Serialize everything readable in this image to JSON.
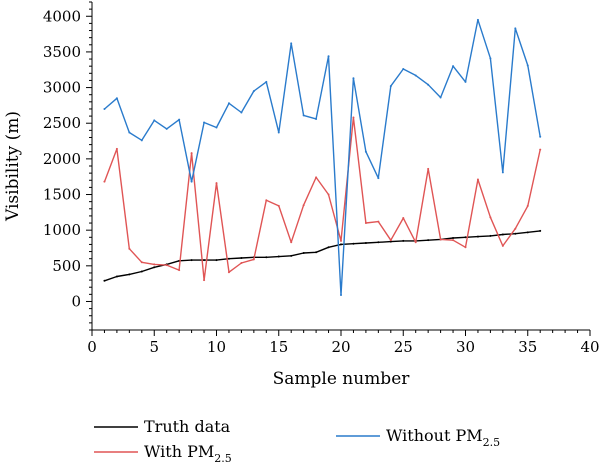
{
  "chart_data": {
    "type": "line",
    "xlabel": "Sample number",
    "ylabel": "Visibility (m)",
    "xlim": [
      0,
      40
    ],
    "ylim": [
      -400,
      4200
    ],
    "xticks": [
      0,
      5,
      10,
      15,
      20,
      25,
      30,
      35,
      40
    ],
    "yticks": [
      0,
      500,
      1000,
      1500,
      2000,
      2500,
      3000,
      3500,
      4000
    ],
    "grid": false,
    "legend_position": "bottom",
    "series": [
      {
        "name": "Truth data",
        "legend_main": "Truth data",
        "legend_sub": "",
        "color": "#000000",
        "x": [
          1,
          2,
          3,
          4,
          5,
          6,
          7,
          8,
          9,
          10,
          11,
          12,
          13,
          14,
          15,
          16,
          17,
          18,
          19,
          20,
          21,
          22,
          23,
          24,
          25,
          26,
          27,
          28,
          29,
          30,
          31,
          32,
          33,
          34,
          35,
          36
        ],
        "y": [
          290,
          350,
          380,
          420,
          480,
          520,
          570,
          580,
          580,
          580,
          600,
          610,
          620,
          620,
          630,
          640,
          680,
          690,
          760,
          800,
          810,
          820,
          830,
          840,
          850,
          850,
          860,
          870,
          890,
          900,
          910,
          920,
          940,
          950,
          970,
          990
        ]
      },
      {
        "name": "With PM2.5",
        "legend_main": "With PM",
        "legend_sub": "2.5",
        "color": "#e05555",
        "x": [
          1,
          2,
          3,
          4,
          5,
          6,
          7,
          8,
          9,
          10,
          11,
          12,
          13,
          14,
          15,
          16,
          17,
          18,
          19,
          20,
          21,
          22,
          23,
          24,
          25,
          26,
          27,
          28,
          29,
          30,
          31,
          32,
          33,
          34,
          35,
          36
        ],
        "y": [
          1680,
          2140,
          740,
          550,
          520,
          510,
          440,
          2080,
          300,
          1660,
          410,
          540,
          590,
          1420,
          1340,
          830,
          1350,
          1740,
          1500,
          850,
          2580,
          1100,
          1120,
          860,
          1170,
          830,
          1860,
          870,
          860,
          760,
          1710,
          1180,
          780,
          1020,
          1340,
          2130
        ]
      },
      {
        "name": "Without PM2.5",
        "legend_main": "Without PM",
        "legend_sub": "2.5",
        "color": "#2a7bcc",
        "x": [
          1,
          2,
          3,
          4,
          5,
          6,
          7,
          8,
          9,
          10,
          11,
          12,
          13,
          14,
          15,
          16,
          17,
          18,
          19,
          20,
          21,
          22,
          23,
          24,
          25,
          26,
          27,
          28,
          29,
          30,
          31,
          32,
          33,
          34,
          35,
          36
        ],
        "y": [
          2700,
          2850,
          2370,
          2260,
          2540,
          2420,
          2550,
          1680,
          2510,
          2440,
          2780,
          2650,
          2950,
          3080,
          2370,
          3620,
          2610,
          2560,
          3440,
          90,
          3130,
          2100,
          1730,
          3020,
          3260,
          3170,
          3040,
          2860,
          3300,
          3080,
          3950,
          3410,
          1810,
          3830,
          3310,
          2310
        ]
      }
    ]
  }
}
